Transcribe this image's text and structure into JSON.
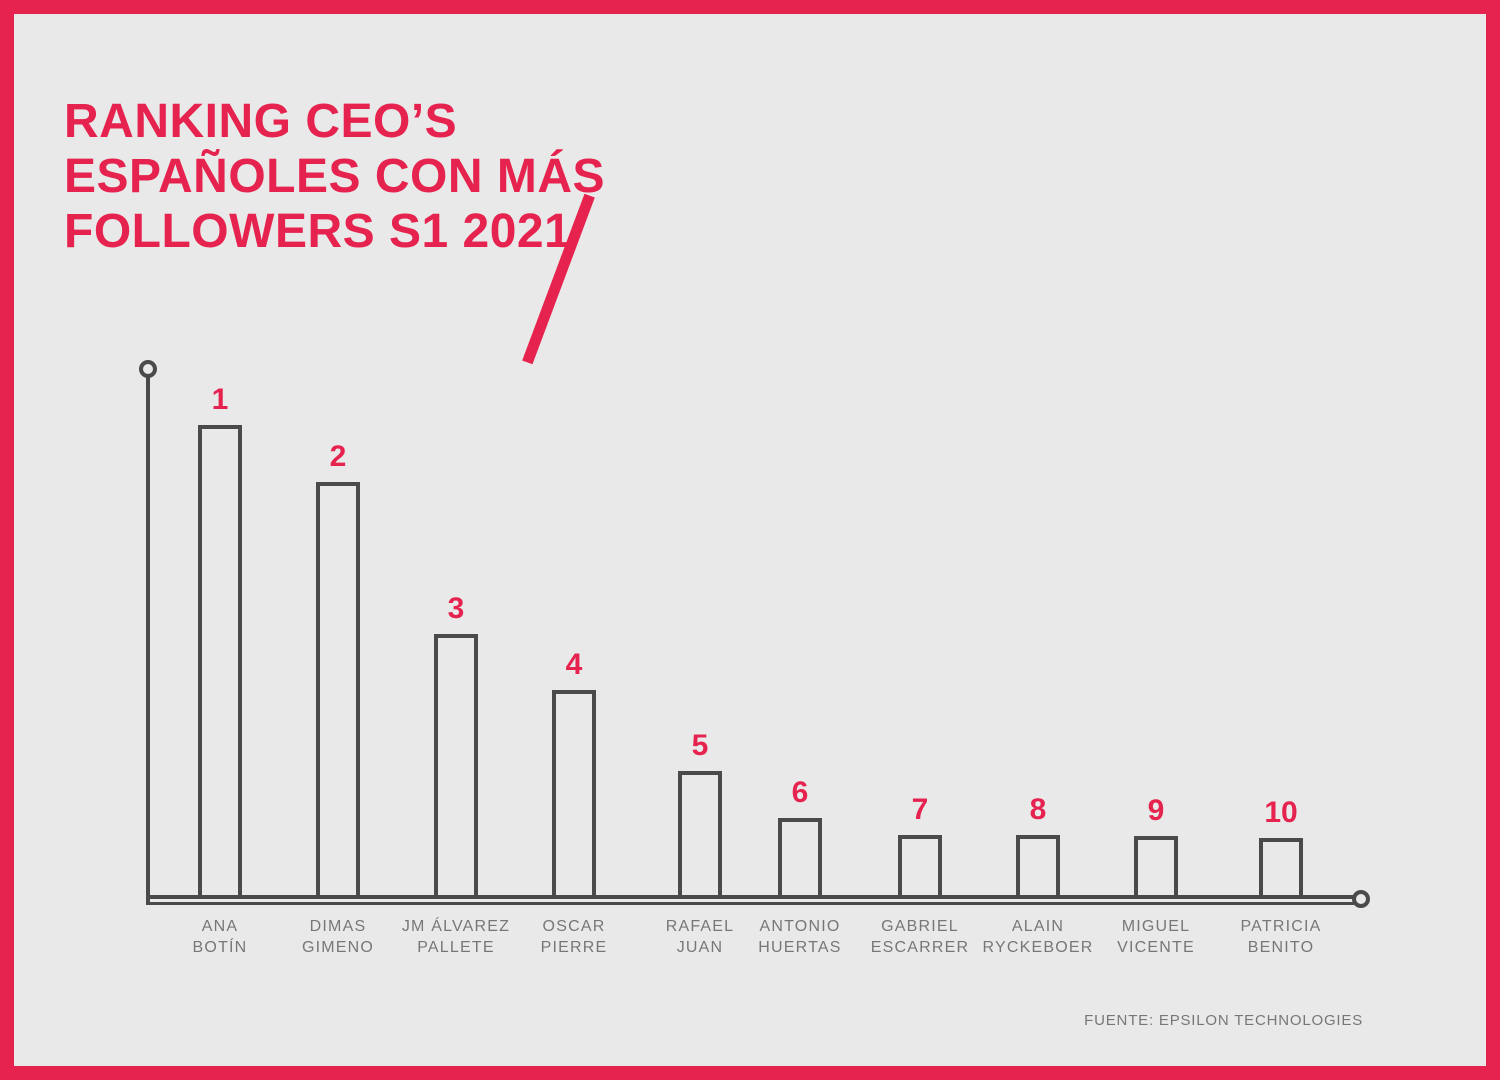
{
  "header": {
    "title_lines": [
      "RANKING CEO’S",
      "ESPAÑOLES CON MÁS",
      "FOLLOWERS S1 2021"
    ]
  },
  "footer": {
    "source": "FUENTE: EPSILON TECHNOLOGIES"
  },
  "colors": {
    "accent": "#e5234e",
    "background": "#e9e9e9",
    "axis_and_bars": "#4a4a4b",
    "category_text": "#77777a"
  },
  "chart_data": {
    "type": "bar",
    "title": "RANKING CEO’S ESPAÑOLES CON MÁS FOLLOWERS S1 2021",
    "ranks": [
      "1",
      "2",
      "3",
      "4",
      "5",
      "6",
      "7",
      "8",
      "9",
      "10"
    ],
    "categories": [
      "ANA BOTÍN",
      "DIMAS GIMENO",
      "JM ÁLVAREZ PALLETE",
      "OSCAR PIERRE",
      "RAFAEL JUAN",
      "ANTONIO HUERTAS",
      "GABRIEL ESCARRER",
      "ALAIN RYCKEBOER",
      "MIGUEL VICENTE",
      "PATRICIA BENITO"
    ],
    "category_lines": [
      [
        "ANA",
        "BOTÍN"
      ],
      [
        "DIMAS",
        "GIMENO"
      ],
      [
        "JM ÁLVAREZ",
        "PALLETE"
      ],
      [
        "OSCAR",
        "PIERRE"
      ],
      [
        "RAFAEL",
        "JUAN"
      ],
      [
        "ANTONIO",
        "HUERTAS"
      ],
      [
        "GABRIEL",
        "ESCARRER"
      ],
      [
        "ALAIN",
        "RYCKEBOER"
      ],
      [
        "MIGUEL",
        "VICENTE"
      ],
      [
        "PATRICIA",
        "BENITO"
      ]
    ],
    "relative_values": [
      1.0,
      0.88,
      0.56,
      0.44,
      0.27,
      0.17,
      0.135,
      0.135,
      0.133,
      0.129
    ],
    "value_labels_shown": false,
    "bar_style": "outline",
    "xlabel": "",
    "ylabel": "",
    "legend": "none",
    "source": "FUENTE: EPSILON TECHNOLOGIES"
  }
}
